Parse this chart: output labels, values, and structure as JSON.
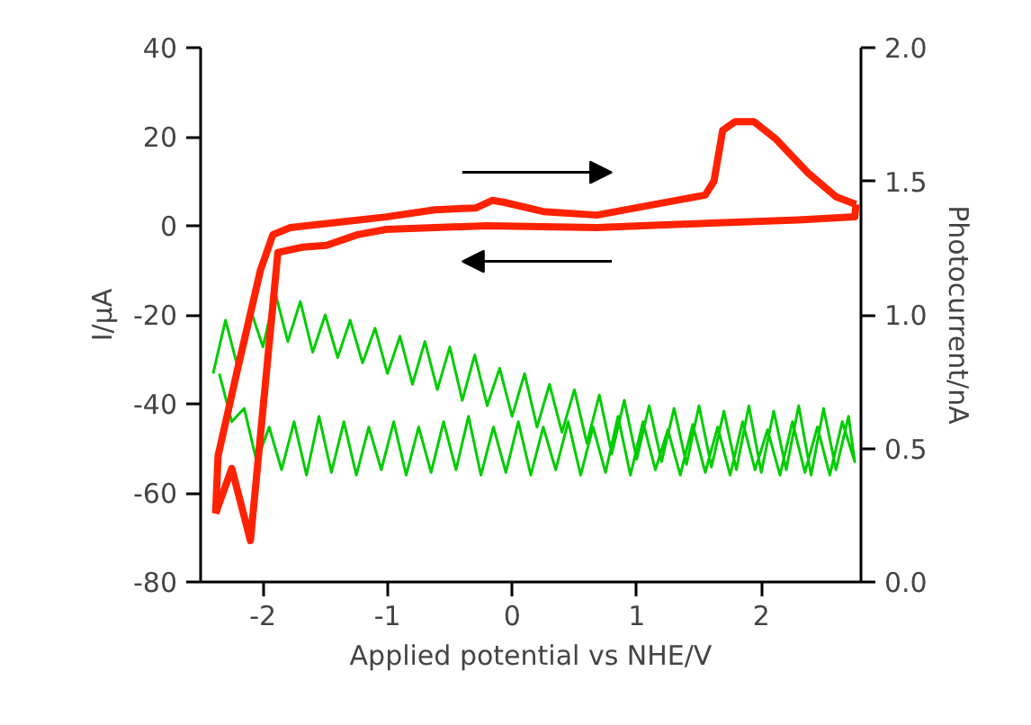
{
  "chart_data": {
    "type": "line",
    "xlabel": "Applied potential vs NHE/V",
    "ylabel": "I/μA",
    "y2label": "Photocurrent/nA",
    "xlim": [
      -2.5,
      2.8
    ],
    "xticks": [
      -2,
      -1,
      0,
      1,
      2
    ],
    "ylim": [
      -80,
      40
    ],
    "yticks": [
      -80,
      -60,
      -40,
      -20,
      0,
      20,
      40
    ],
    "y2lim": [
      0,
      2
    ],
    "y2ticks": [
      {
        "value": 0,
        "label": "0.0"
      },
      {
        "value": 0.5,
        "label": "0.5"
      },
      {
        "value": 1,
        "label": "1.0"
      },
      {
        "value": 1.5,
        "label": "1.5"
      },
      {
        "value": 2,
        "label": "2.0"
      }
    ],
    "series": [
      {
        "color": "#00cc00",
        "axis": "y2",
        "x": [
          -2.4,
          -2.3,
          -2.2,
          -2.1,
          -2.0,
          -1.9,
          -1.8,
          -1.7,
          -1.6,
          -1.5,
          -1.4,
          -1.3,
          -1.2,
          -1.1,
          -1.0,
          -0.9,
          -0.8,
          -0.7,
          -0.6,
          -0.5,
          -0.4,
          -0.3,
          -0.2,
          -0.1,
          0.0,
          0.1,
          0.2,
          0.3,
          0.4,
          0.5,
          0.6,
          0.7,
          0.8,
          0.9,
          1.0,
          1.1,
          1.2,
          1.3,
          1.4,
          1.5,
          1.6,
          1.7,
          1.8,
          1.9,
          2.0,
          2.1,
          2.2,
          2.3,
          2.4,
          2.5,
          2.6,
          2.7,
          2.75,
          2.65,
          2.55,
          2.45,
          2.35,
          2.25,
          2.15,
          2.05,
          1.95,
          1.85,
          1.75,
          1.65,
          1.55,
          1.45,
          1.35,
          1.25,
          1.15,
          1.05,
          0.95,
          0.85,
          0.75,
          0.65,
          0.55,
          0.45,
          0.35,
          0.25,
          0.15,
          0.05,
          -0.05,
          -0.15,
          -0.25,
          -0.35,
          -0.45,
          -0.55,
          -0.65,
          -0.75,
          -0.85,
          -0.95,
          -1.05,
          -1.15,
          -1.25,
          -1.35,
          -1.45,
          -1.55,
          -1.65,
          -1.75,
          -1.85,
          -1.95,
          -2.05,
          -2.15,
          -2.25,
          -2.35
        ],
        "values": [
          0.78,
          0.98,
          0.8,
          1.02,
          0.88,
          1.08,
          0.9,
          1.05,
          0.86,
          1.0,
          0.84,
          0.98,
          0.82,
          0.95,
          0.78,
          0.92,
          0.74,
          0.9,
          0.72,
          0.88,
          0.68,
          0.85,
          0.66,
          0.8,
          0.62,
          0.78,
          0.58,
          0.74,
          0.56,
          0.72,
          0.52,
          0.7,
          0.48,
          0.68,
          0.46,
          0.66,
          0.45,
          0.65,
          0.44,
          0.66,
          0.43,
          0.64,
          0.42,
          0.66,
          0.41,
          0.64,
          0.42,
          0.66,
          0.4,
          0.65,
          0.42,
          0.62,
          0.45,
          0.6,
          0.4,
          0.58,
          0.41,
          0.6,
          0.4,
          0.57,
          0.42,
          0.6,
          0.4,
          0.58,
          0.41,
          0.59,
          0.4,
          0.57,
          0.42,
          0.6,
          0.4,
          0.62,
          0.41,
          0.58,
          0.4,
          0.6,
          0.42,
          0.58,
          0.4,
          0.6,
          0.41,
          0.58,
          0.4,
          0.62,
          0.42,
          0.6,
          0.41,
          0.58,
          0.4,
          0.6,
          0.42,
          0.58,
          0.4,
          0.6,
          0.41,
          0.62,
          0.4,
          0.6,
          0.42,
          0.58,
          0.45,
          0.65,
          0.6,
          0.78
        ]
      },
      {
        "color": "#ff2200",
        "x": [
          -2.38,
          -2.25,
          -2.1,
          -1.88,
          -1.68,
          -1.49,
          -1.24,
          -1.01,
          -0.2,
          0.68,
          1.6,
          2.3,
          2.75,
          2.76
        ],
        "values": [
          -64.6,
          -54.5,
          -70.7,
          -6,
          -4.8,
          -4.4,
          -2,
          -0.8,
          0,
          -0.4,
          0.6,
          1.3,
          2,
          4.8
        ]
      },
      {
        "color": "#ff2200",
        "x": [
          2.76,
          2.6,
          2.37,
          2.12,
          1.94,
          1.79,
          1.69,
          1.62,
          1.55,
          0.68,
          0.25,
          -0.07,
          -0.16,
          -0.29,
          -0.62,
          -1.01,
          -1.39,
          -1.78,
          -1.92,
          -2.02,
          -2.21,
          -2.36,
          -2.38
        ],
        "values": [
          4.8,
          6.5,
          12,
          19.4,
          23.4,
          23.4,
          21.4,
          10,
          6.9,
          2.4,
          3.2,
          5.3,
          5.7,
          4,
          3.6,
          2,
          0.8,
          -0.4,
          -2,
          -10,
          -33,
          -51.7,
          -64.6
        ]
      }
    ]
  }
}
